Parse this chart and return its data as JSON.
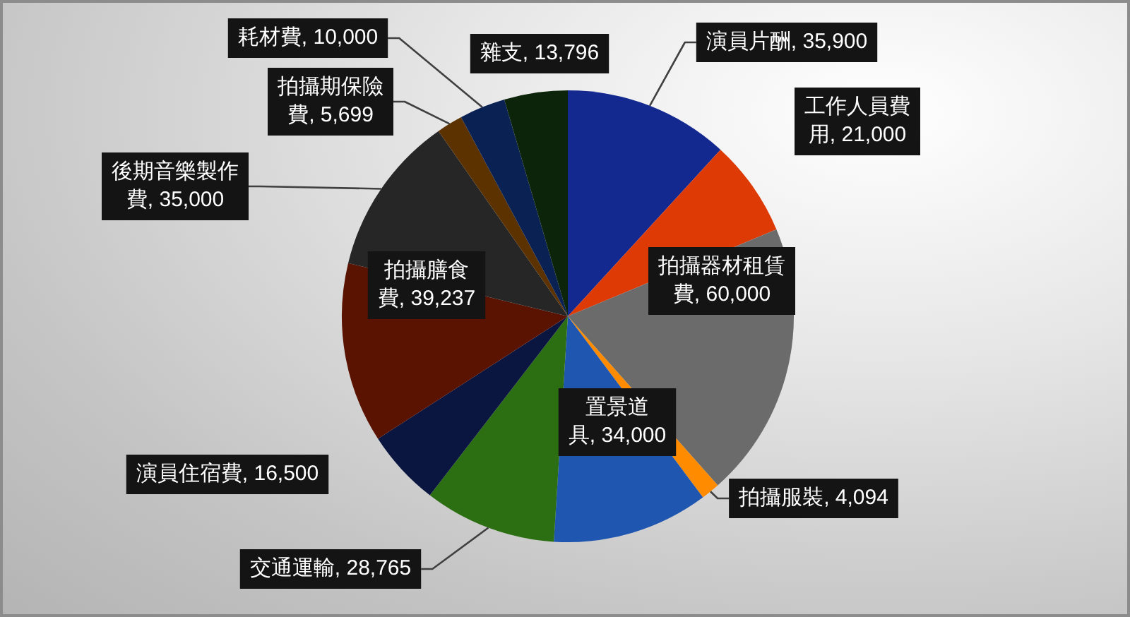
{
  "chart_data": {
    "type": "pie",
    "categories": [
      "演員片酬",
      "工作人員費用",
      "拍攝器材租賃費",
      "拍攝服裝",
      "置景道具",
      "交通運輸",
      "演員住宿費",
      "拍攝膳食費",
      "後期音樂製作費",
      "拍攝期保險費",
      "耗材費",
      "雜支"
    ],
    "values": [
      35900,
      21000,
      60000,
      4094,
      34000,
      28765,
      16500,
      39237,
      35000,
      5699,
      10000,
      13796
    ],
    "value_labels": [
      "35,900",
      "21,000",
      "60,000",
      "4,094",
      "34,000",
      "28,765",
      "16,500",
      "39,237",
      "35,000",
      "5,699",
      "10,000",
      "13,796"
    ],
    "colors": [
      "#13298f",
      "#dd3a06",
      "#6b6b6b",
      "#ff8c00",
      "#1f56b0",
      "#2c6e12",
      "#0a1640",
      "#5a1300",
      "#262626",
      "#5c3300",
      "#0a2154",
      "#0c240a"
    ],
    "legend": false
  }
}
